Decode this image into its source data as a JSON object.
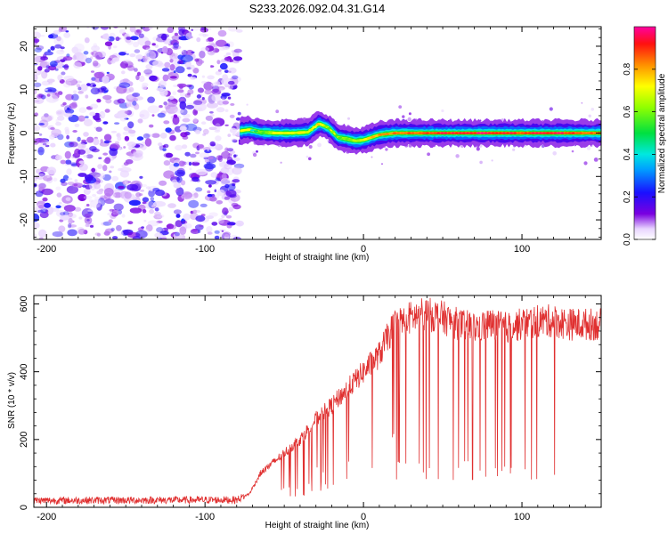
{
  "title": "S233.2026.092.04.31.G14",
  "chart_data": [
    {
      "type": "heatmap",
      "xlabel": "Height of straight line (km)",
      "ylabel": "Frequency (Hz)",
      "xlim": [
        -208,
        150
      ],
      "ylim": [
        -24.5,
        24.5
      ],
      "x_ticks": [
        -200,
        -100,
        0,
        100
      ],
      "y_ticks": [
        20,
        10,
        0,
        -10,
        -20
      ],
      "noise_region_x": [
        -208,
        -78
      ],
      "ridge": {
        "x": [
          -78,
          -72,
          -65,
          -55,
          -45,
          -35,
          -28,
          -22,
          -16,
          -10,
          -5,
          0,
          5,
          10,
          20,
          40,
          60,
          80,
          100,
          120,
          150
        ],
        "y": [
          0.5,
          0.8,
          0.2,
          0.0,
          0.0,
          0.2,
          2.2,
          1.2,
          -1.0,
          -1.4,
          -1.8,
          -1.6,
          -1.0,
          -0.4,
          0.0,
          0.0,
          0.0,
          0.0,
          0.0,
          0.0,
          0.0
        ],
        "amplitude": [
          0.25,
          0.4,
          0.55,
          0.7,
          0.7,
          0.7,
          0.75,
          0.6,
          0.55,
          0.6,
          0.65,
          0.7,
          0.75,
          0.8,
          0.85,
          0.9,
          0.95,
          0.95,
          0.9,
          0.95,
          0.85
        ]
      },
      "colorbar": {
        "label": "Normalized spectral amplitude",
        "ticks": [
          0.0,
          0.2,
          0.4,
          0.6,
          0.8
        ],
        "tick_labels": [
          "0.0",
          "0.2",
          "0.4",
          "0.6",
          "0.8"
        ],
        "range": [
          0,
          1
        ]
      }
    },
    {
      "type": "line",
      "xlabel": "Height of straight line (km)",
      "ylabel": "SNR (10 * v/v)",
      "xlim": [
        -208,
        150
      ],
      "ylim": [
        0,
        625
      ],
      "x_ticks": [
        -200,
        -100,
        0,
        100
      ],
      "y_ticks": [
        0,
        200,
        400,
        600
      ],
      "color": "#e03030",
      "series": [
        {
          "name": "SNR",
          "envelope_x": [
            -208,
            -80,
            -72,
            -65,
            -50,
            -40,
            -30,
            -20,
            -10,
            0,
            10,
            15,
            20,
            30,
            40,
            50,
            60,
            70,
            80,
            90,
            100,
            110,
            120,
            130,
            150
          ],
          "envelope_y": [
            20,
            22,
            40,
            100,
            160,
            200,
            260,
            300,
            350,
            400,
            450,
            500,
            540,
            560,
            570,
            560,
            540,
            530,
            540,
            530,
            540,
            550,
            550,
            540,
            540
          ]
        }
      ]
    }
  ]
}
